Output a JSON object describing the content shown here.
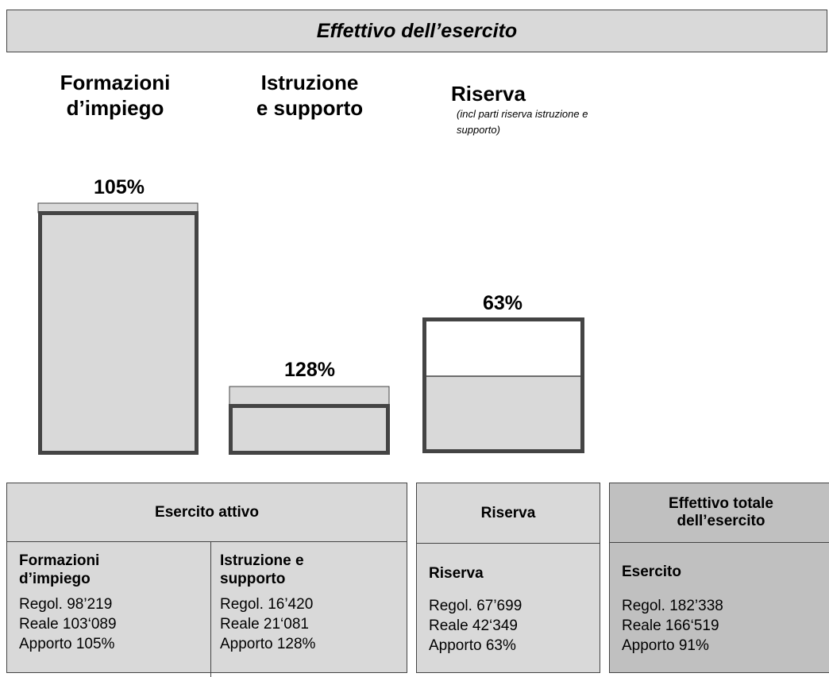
{
  "title": "Effettivo dell’esercito",
  "columns": [
    {
      "heading": [
        "Formazioni",
        "d’impiego"
      ],
      "percent": "105%"
    },
    {
      "heading": [
        "Istruzione",
        "e supporto"
      ],
      "percent": "128%"
    },
    {
      "heading": [
        "Riserva"
      ],
      "note": [
        "(incl parti riserva istruzione e",
        "supporto)"
      ],
      "percent": "63%"
    }
  ],
  "tables": [
    {
      "header": [
        "Esercito attivo"
      ],
      "cells": [
        {
          "title": [
            "Formazioni",
            "d’impiego"
          ],
          "lines": [
            "Regol. 98’219",
            "Reale 103‘089",
            "Apporto 105%"
          ]
        },
        {
          "title": [
            "Istruzione e",
            "supporto"
          ],
          "lines": [
            "Regol. 16’420",
            "Reale 21‘081",
            "Apporto 128%"
          ]
        }
      ]
    },
    {
      "header": [
        "Riserva"
      ],
      "cells": [
        {
          "title": [
            "Riserva"
          ],
          "lines": [
            "Regol. 67’699",
            "Reale 42‘349",
            "Apporto 63%"
          ]
        }
      ]
    },
    {
      "header": [
        "Effettivo totale",
        "dell’esercito"
      ],
      "cells": [
        {
          "title": [
            "Esercito"
          ],
          "lines": [
            "Regol. 182’338",
            "Reale 166‘519",
            "Apporto 91%"
          ]
        }
      ]
    }
  ]
}
